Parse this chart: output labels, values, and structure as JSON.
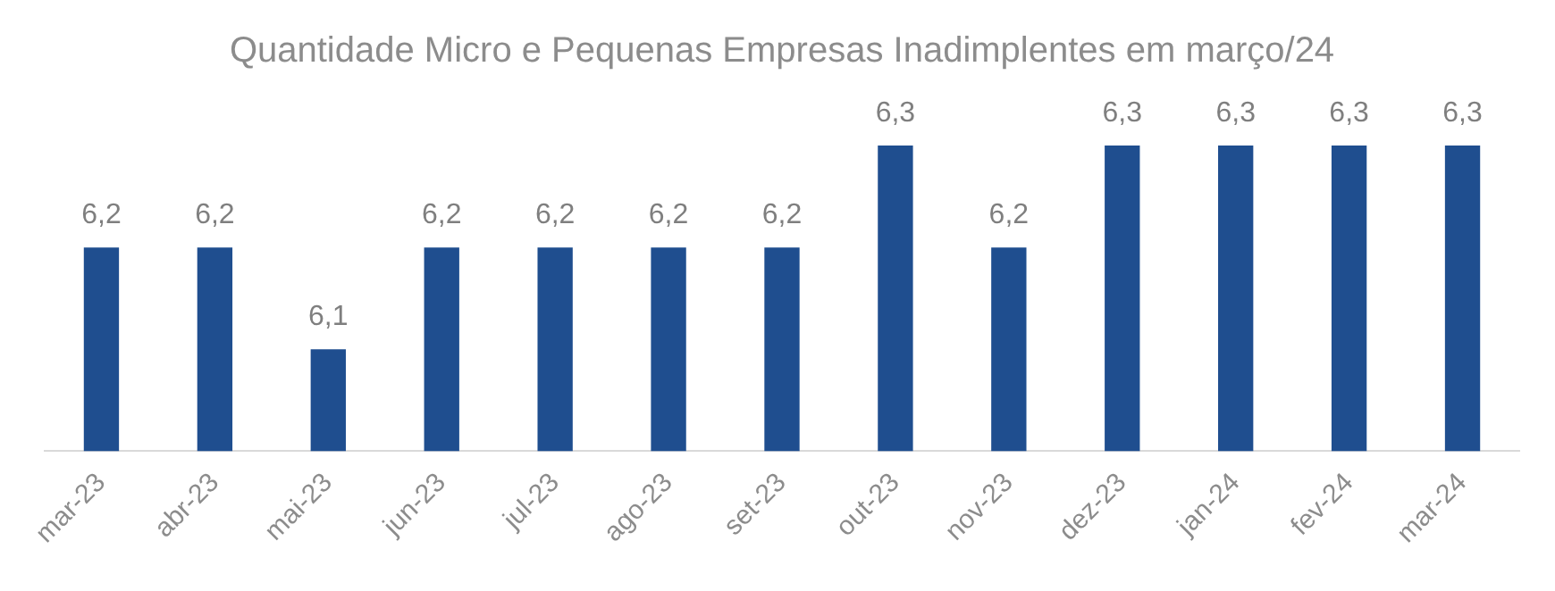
{
  "chart_data": {
    "type": "bar",
    "title": "Quantidade Micro e Pequenas Empresas Inadimplentes em março/24",
    "categories": [
      "mar-23",
      "abr-23",
      "mai-23",
      "jun-23",
      "jul-23",
      "ago-23",
      "set-23",
      "out-23",
      "nov-23",
      "dez-23",
      "jan-24",
      "fev-24",
      "mar-24"
    ],
    "values": [
      6.2,
      6.2,
      6.1,
      6.2,
      6.2,
      6.2,
      6.2,
      6.3,
      6.2,
      6.3,
      6.3,
      6.3,
      6.3
    ],
    "value_labels": [
      "6,2",
      "6,2",
      "6,1",
      "6,2",
      "6,2",
      "6,2",
      "6,2",
      "6,3",
      "6,2",
      "6,3",
      "6,3",
      "6,3",
      "6,3"
    ],
    "color": "#1f4e8f",
    "tick_labels": "x",
    "grid": false,
    "legend": false
  }
}
